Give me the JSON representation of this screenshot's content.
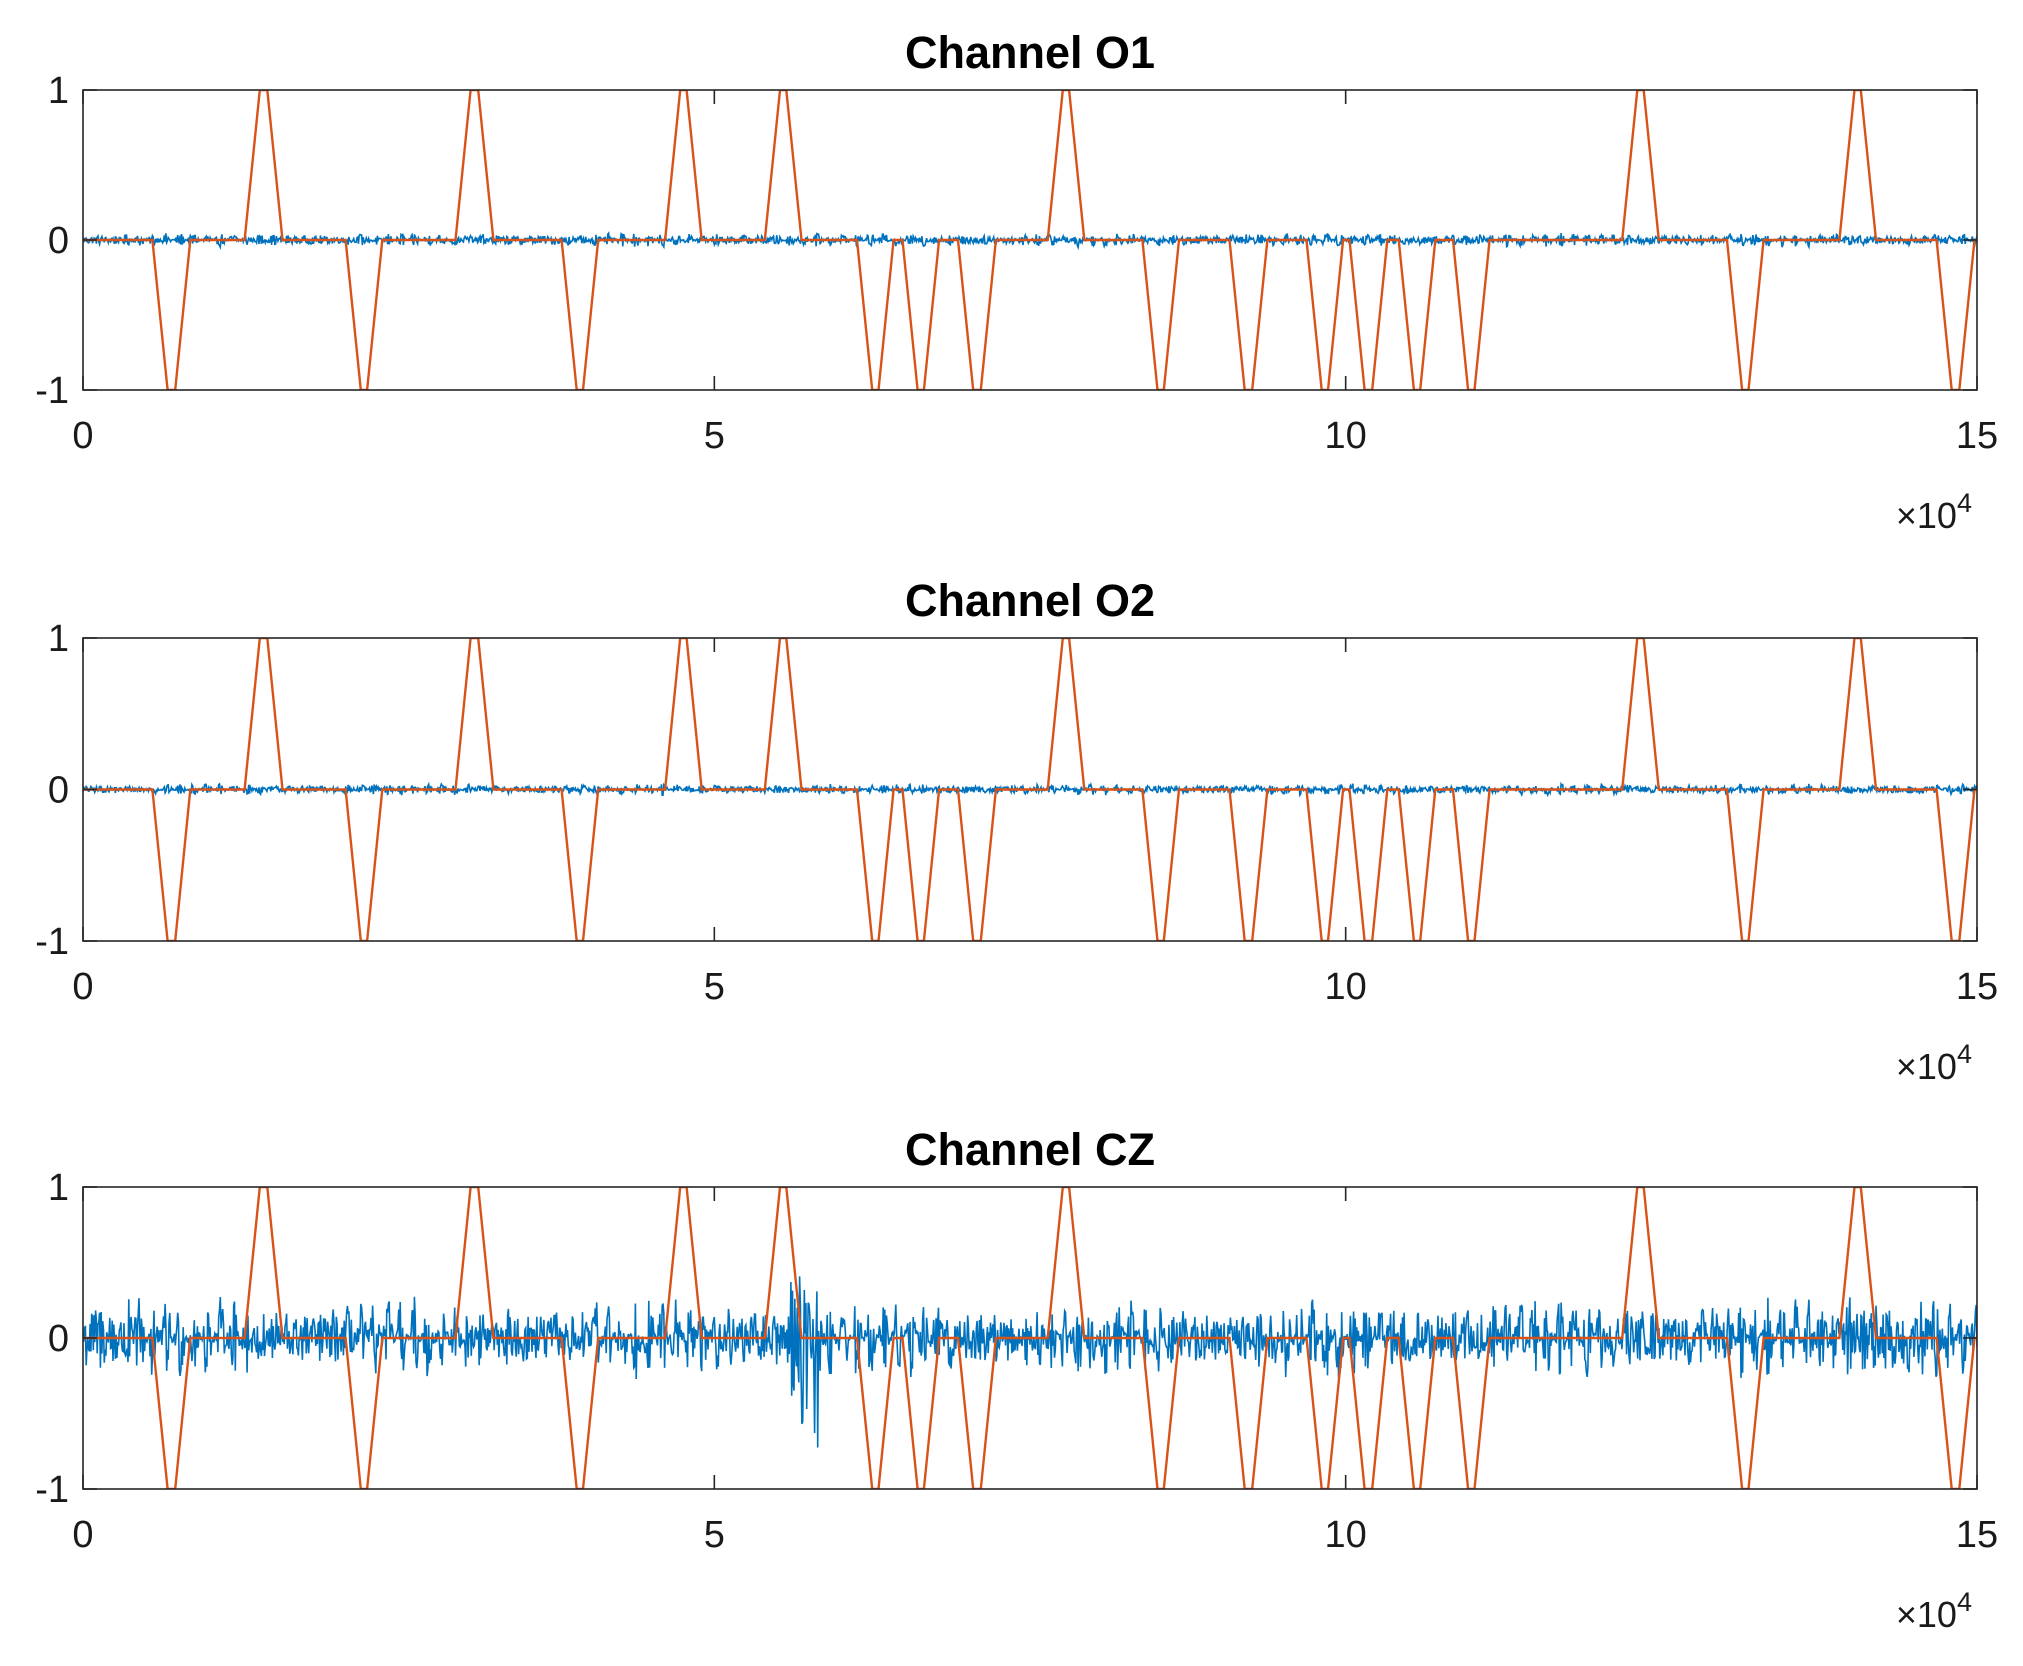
{
  "chart_data": [
    {
      "type": "line",
      "title": "Channel O1",
      "xlabel": "",
      "ylabel": "",
      "xlim": [
        0,
        150000
      ],
      "ylim": [
        -1,
        1
      ],
      "x_exponent_label": "×10",
      "x_exponent": "4",
      "xticks": [
        0,
        50000,
        100000,
        150000
      ],
      "xtick_labels": [
        "0",
        "5",
        "10",
        "15"
      ],
      "yticks": [
        1,
        0,
        -1
      ],
      "ytick_labels": [
        "1",
        "0",
        "-1"
      ],
      "grid": false,
      "series": [
        {
          "role": "eeg",
          "color": "#0072BD",
          "noise_amplitude": 0.05
        },
        {
          "role": "stimulus",
          "color": "#D95319",
          "pulses": [
            {
              "start": 5500,
              "end": 8500,
              "value": -1
            },
            {
              "start": 12800,
              "end": 15800,
              "value": 1
            },
            {
              "start": 20800,
              "end": 23700,
              "value": -1
            },
            {
              "start": 29500,
              "end": 32500,
              "value": 1
            },
            {
              "start": 37900,
              "end": 40800,
              "value": -1
            },
            {
              "start": 46100,
              "end": 49000,
              "value": 1
            },
            {
              "start": 54000,
              "end": 56900,
              "value": 1
            },
            {
              "start": 61300,
              "end": 64200,
              "value": -1
            },
            {
              "start": 64900,
              "end": 67800,
              "value": -1
            },
            {
              "start": 69300,
              "end": 72300,
              "value": -1
            },
            {
              "start": 76400,
              "end": 79300,
              "value": 1
            },
            {
              "start": 83900,
              "end": 86800,
              "value": -1
            },
            {
              "start": 90800,
              "end": 93800,
              "value": -1
            },
            {
              "start": 96900,
              "end": 99800,
              "value": -1
            },
            {
              "start": 100300,
              "end": 103300,
              "value": -1
            },
            {
              "start": 104200,
              "end": 107100,
              "value": -1
            },
            {
              "start": 108500,
              "end": 111400,
              "value": -1
            },
            {
              "start": 121900,
              "end": 124800,
              "value": 1
            },
            {
              "start": 130200,
              "end": 133100,
              "value": -1
            },
            {
              "start": 139100,
              "end": 142000,
              "value": 1
            },
            {
              "start": 146800,
              "end": 149800,
              "value": -1
            }
          ]
        }
      ]
    },
    {
      "type": "line",
      "title": "Channel O2",
      "xlabel": "",
      "ylabel": "",
      "xlim": [
        0,
        150000
      ],
      "ylim": [
        -1,
        1
      ],
      "x_exponent_label": "×10",
      "x_exponent": "4",
      "xticks": [
        0,
        50000,
        100000,
        150000
      ],
      "xtick_labels": [
        "0",
        "5",
        "10",
        "15"
      ],
      "yticks": [
        1,
        0,
        -1
      ],
      "ytick_labels": [
        "1",
        "0",
        "-1"
      ],
      "grid": false,
      "series": [
        {
          "role": "eeg",
          "color": "#0072BD",
          "noise_amplitude": 0.04
        },
        {
          "role": "stimulus",
          "color": "#D95319",
          "pulses": [
            {
              "start": 5500,
              "end": 8500,
              "value": -1
            },
            {
              "start": 12800,
              "end": 15800,
              "value": 1
            },
            {
              "start": 20800,
              "end": 23700,
              "value": -1
            },
            {
              "start": 29500,
              "end": 32500,
              "value": 1
            },
            {
              "start": 37900,
              "end": 40800,
              "value": -1
            },
            {
              "start": 46100,
              "end": 49000,
              "value": 1
            },
            {
              "start": 54000,
              "end": 56900,
              "value": 1
            },
            {
              "start": 61300,
              "end": 64200,
              "value": -1
            },
            {
              "start": 64900,
              "end": 67800,
              "value": -1
            },
            {
              "start": 69300,
              "end": 72300,
              "value": -1
            },
            {
              "start": 76400,
              "end": 79300,
              "value": 1
            },
            {
              "start": 83900,
              "end": 86800,
              "value": -1
            },
            {
              "start": 90800,
              "end": 93800,
              "value": -1
            },
            {
              "start": 96900,
              "end": 99800,
              "value": -1
            },
            {
              "start": 100300,
              "end": 103300,
              "value": -1
            },
            {
              "start": 104200,
              "end": 107100,
              "value": -1
            },
            {
              "start": 108500,
              "end": 111400,
              "value": -1
            },
            {
              "start": 121900,
              "end": 124800,
              "value": 1
            },
            {
              "start": 130200,
              "end": 133100,
              "value": -1
            },
            {
              "start": 139100,
              "end": 142000,
              "value": 1
            },
            {
              "start": 146800,
              "end": 149800,
              "value": -1
            }
          ]
        }
      ]
    },
    {
      "type": "line",
      "title": "Channel CZ",
      "xlabel": "",
      "ylabel": "",
      "xlim": [
        0,
        150000
      ],
      "ylim": [
        -1,
        1
      ],
      "x_exponent_label": "×10",
      "x_exponent": "4",
      "xticks": [
        0,
        50000,
        100000,
        150000
      ],
      "xtick_labels": [
        "0",
        "5",
        "10",
        "15"
      ],
      "yticks": [
        1,
        0,
        -1
      ],
      "ytick_labels": [
        "1",
        "0",
        "-1"
      ],
      "grid": false,
      "series": [
        {
          "role": "eeg",
          "color": "#0072BD",
          "noise_amplitude": 0.28
        },
        {
          "role": "stimulus",
          "color": "#D95319",
          "pulses": [
            {
              "start": 5500,
              "end": 8500,
              "value": -1
            },
            {
              "start": 12800,
              "end": 15800,
              "value": 1
            },
            {
              "start": 20800,
              "end": 23700,
              "value": -1
            },
            {
              "start": 29500,
              "end": 32500,
              "value": 1
            },
            {
              "start": 37900,
              "end": 40800,
              "value": -1
            },
            {
              "start": 46100,
              "end": 49000,
              "value": 1
            },
            {
              "start": 54000,
              "end": 56900,
              "value": 1
            },
            {
              "start": 61300,
              "end": 64200,
              "value": -1
            },
            {
              "start": 64900,
              "end": 67800,
              "value": -1
            },
            {
              "start": 69300,
              "end": 72300,
              "value": -1
            },
            {
              "start": 76400,
              "end": 79300,
              "value": 1
            },
            {
              "start": 83900,
              "end": 86800,
              "value": -1
            },
            {
              "start": 90800,
              "end": 93800,
              "value": -1
            },
            {
              "start": 96900,
              "end": 99800,
              "value": -1
            },
            {
              "start": 100300,
              "end": 103300,
              "value": -1
            },
            {
              "start": 104200,
              "end": 107100,
              "value": -1
            },
            {
              "start": 108500,
              "end": 111400,
              "value": -1
            },
            {
              "start": 121900,
              "end": 124800,
              "value": 1
            },
            {
              "start": 130200,
              "end": 133100,
              "value": -1
            },
            {
              "start": 139100,
              "end": 142000,
              "value": 1
            },
            {
              "start": 146800,
              "end": 149800,
              "value": -1
            }
          ]
        }
      ]
    }
  ]
}
